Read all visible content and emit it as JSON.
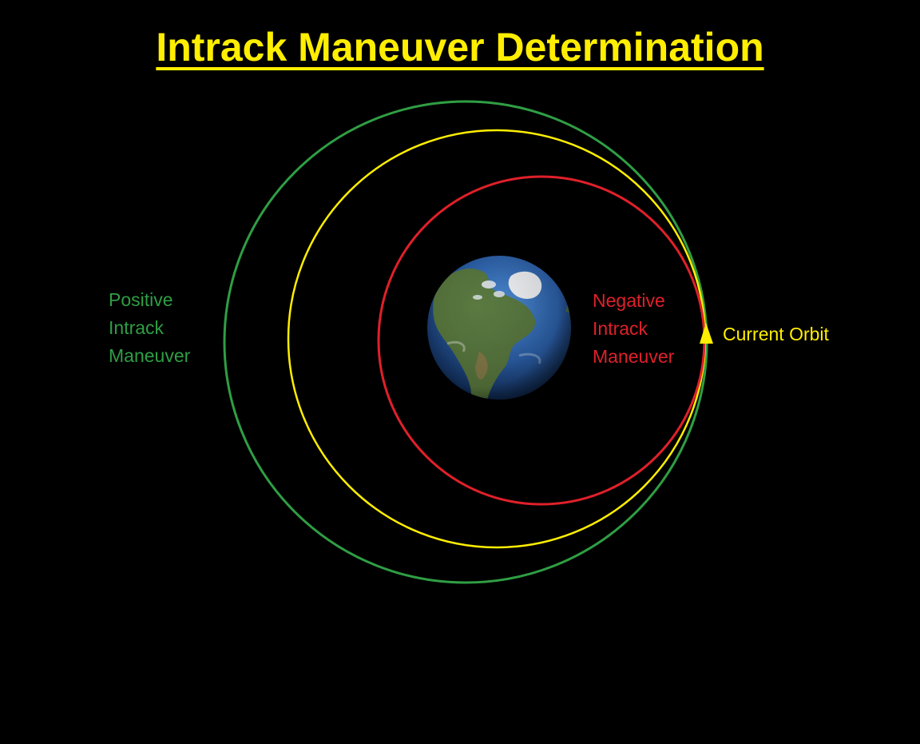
{
  "title": "Intrack Maneuver Determination",
  "labels": {
    "positive": [
      "Positive",
      "Intrack",
      "Maneuver"
    ],
    "negative": [
      "Negative",
      "Intrack",
      "Maneuver"
    ],
    "current": "Current Orbit"
  },
  "colors": {
    "background": "#000000",
    "title": "#ffee00",
    "positive_orbit": "#2f9e44",
    "current_orbit": "#ffee00",
    "negative_orbit": "#e0202a",
    "ocean": "#2b5fa8",
    "land": "#5c7a3a"
  },
  "icons": {
    "earth": "earth-globe-icon",
    "satellite": "satellite-triangle-icon"
  }
}
